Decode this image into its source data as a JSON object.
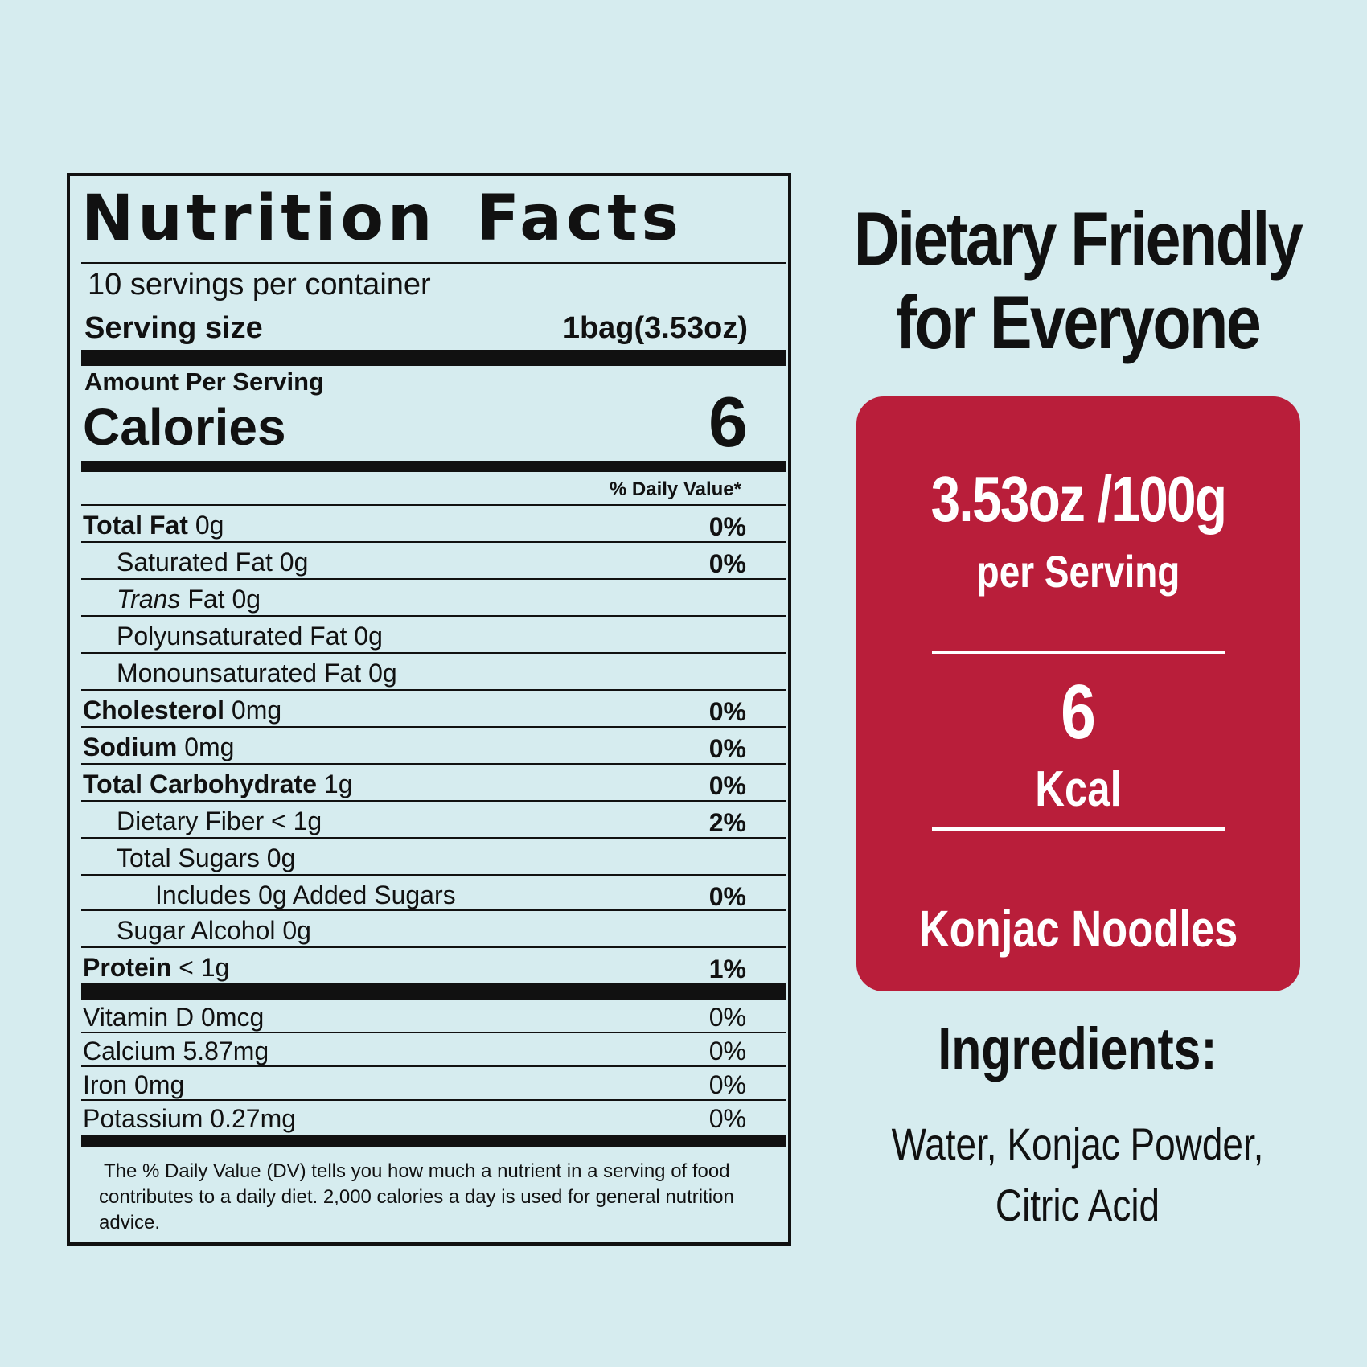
{
  "label": {
    "title": "Nutrition Facts",
    "servings": "10 servings per container",
    "serving_size_label": "Serving size",
    "serving_size_value": "1bag(3.53oz)",
    "amount_per_serving": "Amount Per Serving",
    "calories_label": "Calories",
    "calories_value": "6",
    "dv_header": "% Daily Value*",
    "nutrients": [
      {
        "bold": "Total Fat",
        "rest": " 0g",
        "dv": "0%"
      },
      {
        "bold": "",
        "rest": "Saturated Fat 0g",
        "dv": "0%"
      },
      {
        "italic": "Trans",
        "rest": " Fat 0g",
        "dv": ""
      },
      {
        "bold": "",
        "rest": "Polyunsaturated Fat 0g",
        "dv": ""
      },
      {
        "bold": "",
        "rest": "Monounsaturated Fat 0g",
        "dv": ""
      },
      {
        "bold": "Cholesterol",
        "rest": " 0mg",
        "dv": "0%"
      },
      {
        "bold": "Sodium",
        "rest": " 0mg",
        "dv": "0%"
      },
      {
        "bold": "Total Carbohydrate",
        "rest": " 1g",
        "dv": "0%"
      },
      {
        "bold": "",
        "rest": "Dietary Fiber < 1g",
        "dv": "2%"
      },
      {
        "bold": "",
        "rest": "Total Sugars 0g",
        "dv": ""
      },
      {
        "bold": "",
        "rest": "Includes 0g Added Sugars",
        "dv": "0%"
      },
      {
        "bold": "",
        "rest": "Sugar Alcohol 0g",
        "dv": ""
      },
      {
        "bold": "Protein",
        "rest": " < 1g",
        "dv": "1%"
      }
    ],
    "vitamins": [
      {
        "name": "Vitamin D 0mcg",
        "dv": "0%"
      },
      {
        "name": "Calcium 5.87mg",
        "dv": "0%"
      },
      {
        "name": "Iron 0mg",
        "dv": "0%"
      },
      {
        "name": "Potassium 0.27mg",
        "dv": "0%"
      }
    ],
    "footnote_lines": [
      "The % Daily Value (DV) tells you how much a nutrient in a serving of food",
      "contributes to a daily diet. 2,000 calories a  day is used for general nutrition",
      "advice."
    ]
  },
  "promo": {
    "title_line1": "Dietary Friendly",
    "title_line2": "for Everyone",
    "weight": "3.53oz /100g",
    "per_serving": "per Serving",
    "kcal_value": "6",
    "kcal_unit": "Kcal",
    "product": "Konjac Noodles",
    "ingredients_title": "Ingredients:",
    "ingredients_line1": "Water, Konjac Powder,",
    "ingredients_line2": "Citric Acid",
    "card_color": "#b91e3a",
    "background_color": "#d6ecef"
  }
}
